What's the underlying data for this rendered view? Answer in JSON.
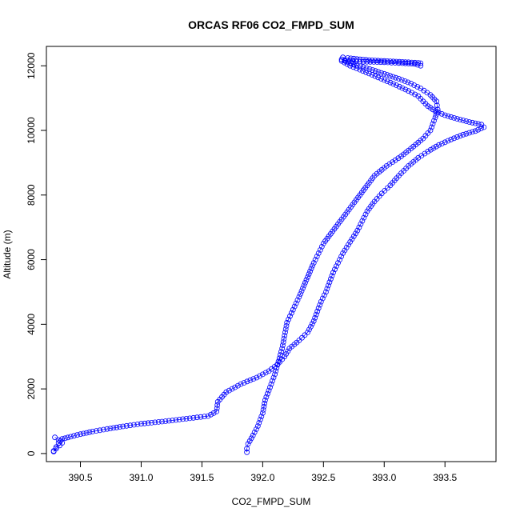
{
  "chart_data": {
    "type": "scatter",
    "title": "ORCAS RF06 CO2_FMPD_SUM",
    "xlabel": "CO2_FMPD_SUM",
    "ylabel": "Altitude (m)",
    "xlim": [
      390.22,
      393.92
    ],
    "ylim": [
      -250,
      12600
    ],
    "xticks": [
      390.5,
      391.0,
      391.5,
      392.0,
      392.5,
      393.0,
      393.5
    ],
    "xtick_labels": [
      "390.5",
      "391.0",
      "391.5",
      "392.0",
      "392.5",
      "393.0",
      "393.5"
    ],
    "yticks": [
      0,
      2000,
      4000,
      6000,
      8000,
      10000,
      12000
    ],
    "ytick_labels": [
      "0",
      "2000",
      "4000",
      "6000",
      "8000",
      "10000",
      "12000"
    ],
    "grid": false,
    "marker": "open-circle",
    "series_color": "#0000ff",
    "series": [
      {
        "segments": [
          {
            "x": [
              390.28,
              390.3,
              390.32,
              390.35,
              390.42,
              390.5,
              390.6,
              390.72,
              390.85,
              391.0,
              391.2,
              391.4,
              391.55,
              391.62,
              391.63,
              391.7,
              391.82,
              391.95,
              392.05,
              392.12,
              392.18,
              392.22,
              392.3,
              392.37,
              392.42,
              392.45,
              392.48,
              392.52,
              392.55,
              392.58,
              392.62,
              392.66,
              392.72,
              392.78,
              392.82,
              392.86,
              392.92,
              392.98,
              393.05,
              393.12,
              393.2,
              393.28,
              393.36,
              393.45,
              393.55,
              393.65,
              393.75,
              393.82,
              393.8,
              393.7,
              393.6,
              393.5,
              393.42,
              393.36,
              393.32,
              393.28,
              393.2,
              393.1,
              393.0,
              392.9,
              392.8,
              392.72,
              392.65,
              392.8,
              393.0,
              393.15,
              393.25,
              393.3
            ],
            "y": [
              80,
              200,
              330,
              450,
              520,
              600,
              680,
              760,
              840,
              920,
              1000,
              1090,
              1160,
              1300,
              1600,
              1900,
              2150,
              2350,
              2550,
              2750,
              3000,
              3250,
              3500,
              3750,
              4100,
              4400,
              4700,
              5000,
              5300,
              5600,
              5900,
              6200,
              6550,
              6900,
              7200,
              7500,
              7800,
              8050,
              8300,
              8600,
              8900,
              9150,
              9350,
              9550,
              9720,
              9870,
              9980,
              10100,
              10180,
              10260,
              10360,
              10470,
              10600,
              10750,
              10900,
              11060,
              11220,
              11400,
              11560,
              11720,
              11880,
              12000,
              12150,
              12130,
              12110,
              12080,
              12060,
              12000
            ]
          },
          {
            "x": [
              392.65,
              392.75,
              392.88,
              393.0,
              393.12,
              393.22,
              393.3,
              393.38,
              393.43,
              393.44,
              393.42,
              393.4,
              393.38,
              393.32,
              393.24,
              393.14,
              393.02,
              392.92,
              392.86,
              392.8,
              392.74,
              392.68,
              392.62,
              392.56,
              392.5,
              392.46,
              392.42,
              392.38,
              392.34,
              392.3,
              392.25,
              392.2,
              392.18,
              392.16,
              392.13,
              392.1,
              392.06,
              392.02,
              392.0,
              391.96,
              391.92,
              391.88,
              391.87,
              391.87
            ],
            "y": [
              12200,
              12050,
              11900,
              11750,
              11600,
              11450,
              11300,
              11100,
              10900,
              10650,
              10400,
              10200,
              10000,
              9750,
              9500,
              9200,
              8900,
              8600,
              8300,
              8000,
              7700,
              7400,
              7100,
              6800,
              6500,
              6200,
              5900,
              5550,
              5200,
              4850,
              4450,
              4050,
              3650,
              3250,
              2850,
              2450,
              2050,
              1650,
              1250,
              850,
              560,
              300,
              150,
              40
            ]
          },
          {
            "x": [
              392.66,
              392.7,
              392.75,
              392.8,
              392.9,
              393.0,
              393.1,
              393.2,
              393.28,
              393.3
            ],
            "y": [
              12260,
              12240,
              12220,
              12200,
              12170,
              12150,
              12130,
              12110,
              12090,
              12080
            ]
          },
          {
            "x": [
              390.28,
              390.3,
              390.33,
              390.35,
              390.32,
              390.29
            ],
            "y": [
              60,
              150,
              250,
              330,
              420,
              500
            ]
          }
        ]
      }
    ]
  }
}
